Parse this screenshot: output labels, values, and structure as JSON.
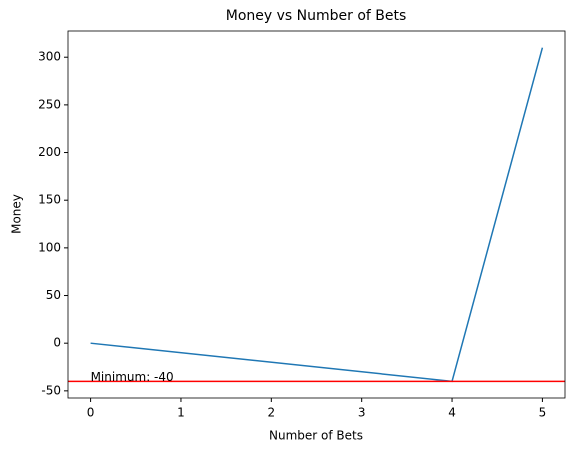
{
  "chart_data": {
    "type": "line",
    "title": "Money vs Number of Bets",
    "x_label": "Number of Bets",
    "y_label": "Money",
    "x": [
      0,
      4,
      5
    ],
    "series": [
      {
        "values": [
          0,
          -40,
          310
        ],
        "color": "#1f77b4"
      }
    ],
    "xlim": [
      -0.25,
      5.25
    ],
    "xticks": [
      0,
      1,
      2,
      3,
      4,
      5
    ],
    "ylim": [
      -57.5,
      327.5
    ],
    "yticks": [
      -50,
      0,
      50,
      100,
      150,
      200,
      250,
      300
    ],
    "hline": {
      "value": -40,
      "color": "#ff0000"
    },
    "annotation": {
      "text": "Minimum: -40",
      "x": 0,
      "y": -40
    }
  }
}
